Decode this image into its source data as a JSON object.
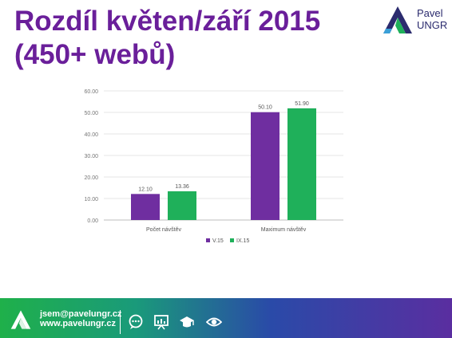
{
  "title": {
    "line1": "Rozdíl květen/září 2015",
    "line2": "(450+ webů)"
  },
  "logo": {
    "first_name": "Pavel",
    "last_name": "UNGR"
  },
  "footer": {
    "email": "jsem@pavelungr.cz",
    "website": "www.pavelungr.cz",
    "icons": [
      "chat-bubble-icon",
      "presentation-board-icon",
      "graduation-cap-icon",
      "eye-icon"
    ]
  },
  "colors": {
    "title": "#6a1f9a",
    "series_v15": "#6f2ea0",
    "series_ix15": "#1fb05a"
  },
  "chart_data": {
    "type": "bar",
    "categories": [
      "Počet návštěv",
      "Maximum návštěv"
    ],
    "series": [
      {
        "name": "V.15",
        "values": [
          12.1,
          50.1
        ],
        "labels": [
          "12.10",
          "50.10"
        ],
        "color": "#6f2ea0"
      },
      {
        "name": "IX.15",
        "values": [
          13.36,
          51.9
        ],
        "labels": [
          "13.36",
          "51.90"
        ],
        "color": "#1fb05a"
      }
    ],
    "yticks": [
      "0.00",
      "10.00",
      "20.00",
      "30.00",
      "40.00",
      "50.00",
      "60.00"
    ],
    "ylim": [
      0,
      60
    ],
    "grid": true,
    "legend": "bottom-center"
  }
}
